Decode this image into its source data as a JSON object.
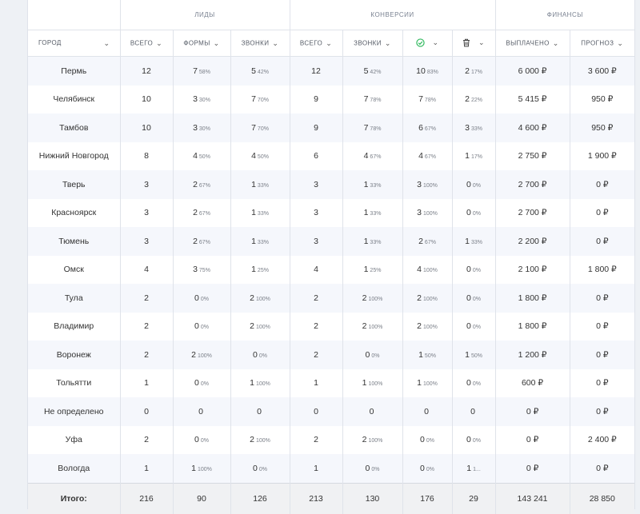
{
  "groups": {
    "leads": "ЛИДЫ",
    "conversions": "КОНВЕРСИИ",
    "finance": "ФИНАНСЫ"
  },
  "columns": {
    "city": "ГОРОД",
    "leads_total": "ВСЕГО",
    "leads_forms": "ФОРМЫ",
    "leads_calls": "ЗВОНКИ",
    "conv_total": "ВСЕГО",
    "conv_calls": "ЗВОНКИ",
    "paid": "ВЫПЛАЧЕНО",
    "forecast": "ПРОГНОЗ"
  },
  "colors": {
    "approved_icon": "#2eb85c",
    "row_alt": "#f5f7fc",
    "border": "#dfe3ea"
  },
  "rows": [
    {
      "city": "Пермь",
      "lt": "12",
      "lf": "7",
      "lfp": "58%",
      "lc": "5",
      "lcp": "42%",
      "ct": "12",
      "cc": "5",
      "ccp": "42%",
      "ca": "10",
      "cap": "83%",
      "cd": "2",
      "cdp": "17%",
      "paid": "6 000 ₽",
      "fc": "3 600 ₽"
    },
    {
      "city": "Челябинск",
      "lt": "10",
      "lf": "3",
      "lfp": "30%",
      "lc": "7",
      "lcp": "70%",
      "ct": "9",
      "cc": "7",
      "ccp": "78%",
      "ca": "7",
      "cap": "78%",
      "cd": "2",
      "cdp": "22%",
      "paid": "5 415 ₽",
      "fc": "950 ₽"
    },
    {
      "city": "Тамбов",
      "lt": "10",
      "lf": "3",
      "lfp": "30%",
      "lc": "7",
      "lcp": "70%",
      "ct": "9",
      "cc": "7",
      "ccp": "78%",
      "ca": "6",
      "cap": "67%",
      "cd": "3",
      "cdp": "33%",
      "paid": "4 600 ₽",
      "fc": "950 ₽"
    },
    {
      "city": "Нижний Новгород",
      "lt": "8",
      "lf": "4",
      "lfp": "50%",
      "lc": "4",
      "lcp": "50%",
      "ct": "6",
      "cc": "4",
      "ccp": "67%",
      "ca": "4",
      "cap": "67%",
      "cd": "1",
      "cdp": "17%",
      "paid": "2 750 ₽",
      "fc": "1 900 ₽"
    },
    {
      "city": "Тверь",
      "lt": "3",
      "lf": "2",
      "lfp": "67%",
      "lc": "1",
      "lcp": "33%",
      "ct": "3",
      "cc": "1",
      "ccp": "33%",
      "ca": "3",
      "cap": "100%",
      "cd": "0",
      "cdp": "0%",
      "paid": "2 700 ₽",
      "fc": "0 ₽"
    },
    {
      "city": "Красноярск",
      "lt": "3",
      "lf": "2",
      "lfp": "67%",
      "lc": "1",
      "lcp": "33%",
      "ct": "3",
      "cc": "1",
      "ccp": "33%",
      "ca": "3",
      "cap": "100%",
      "cd": "0",
      "cdp": "0%",
      "paid": "2 700 ₽",
      "fc": "0 ₽"
    },
    {
      "city": "Тюмень",
      "lt": "3",
      "lf": "2",
      "lfp": "67%",
      "lc": "1",
      "lcp": "33%",
      "ct": "3",
      "cc": "1",
      "ccp": "33%",
      "ca": "2",
      "cap": "67%",
      "cd": "1",
      "cdp": "33%",
      "paid": "2 200 ₽",
      "fc": "0 ₽"
    },
    {
      "city": "Омск",
      "lt": "4",
      "lf": "3",
      "lfp": "75%",
      "lc": "1",
      "lcp": "25%",
      "ct": "4",
      "cc": "1",
      "ccp": "25%",
      "ca": "4",
      "cap": "100%",
      "cd": "0",
      "cdp": "0%",
      "paid": "2 100 ₽",
      "fc": "1 800 ₽"
    },
    {
      "city": "Тула",
      "lt": "2",
      "lf": "0",
      "lfp": "0%",
      "lc": "2",
      "lcp": "100%",
      "ct": "2",
      "cc": "2",
      "ccp": "100%",
      "ca": "2",
      "cap": "100%",
      "cd": "0",
      "cdp": "0%",
      "paid": "1 800 ₽",
      "fc": "0 ₽"
    },
    {
      "city": "Владимир",
      "lt": "2",
      "lf": "0",
      "lfp": "0%",
      "lc": "2",
      "lcp": "100%",
      "ct": "2",
      "cc": "2",
      "ccp": "100%",
      "ca": "2",
      "cap": "100%",
      "cd": "0",
      "cdp": "0%",
      "paid": "1 800 ₽",
      "fc": "0 ₽"
    },
    {
      "city": "Воронеж",
      "lt": "2",
      "lf": "2",
      "lfp": "100%",
      "lc": "0",
      "lcp": "0%",
      "ct": "2",
      "cc": "0",
      "ccp": "0%",
      "ca": "1",
      "cap": "50%",
      "cd": "1",
      "cdp": "50%",
      "paid": "1 200 ₽",
      "fc": "0 ₽"
    },
    {
      "city": "Тольятти",
      "lt": "1",
      "lf": "0",
      "lfp": "0%",
      "lc": "1",
      "lcp": "100%",
      "ct": "1",
      "cc": "1",
      "ccp": "100%",
      "ca": "1",
      "cap": "100%",
      "cd": "0",
      "cdp": "0%",
      "paid": "600 ₽",
      "fc": "0 ₽"
    },
    {
      "city": "Не определено",
      "lt": "0",
      "lf": "0",
      "lfp": "",
      "lc": "0",
      "lcp": "",
      "ct": "0",
      "cc": "0",
      "ccp": "",
      "ca": "0",
      "cap": "",
      "cd": "0",
      "cdp": "",
      "paid": "0 ₽",
      "fc": "0 ₽"
    },
    {
      "city": "Уфа",
      "lt": "2",
      "lf": "0",
      "lfp": "0%",
      "lc": "2",
      "lcp": "100%",
      "ct": "2",
      "cc": "2",
      "ccp": "100%",
      "ca": "0",
      "cap": "0%",
      "cd": "0",
      "cdp": "0%",
      "paid": "0 ₽",
      "fc": "2 400 ₽"
    },
    {
      "city": "Вологда",
      "lt": "1",
      "lf": "1",
      "lfp": "100%",
      "lc": "0",
      "lcp": "0%",
      "ct": "1",
      "cc": "0",
      "ccp": "0%",
      "ca": "0",
      "cap": "0%",
      "cd": "1",
      "cdp": "1...",
      "paid": "0 ₽",
      "fc": "0 ₽"
    }
  ],
  "total": {
    "label": "Итого:",
    "lt": "216",
    "lf": "90",
    "lc": "126",
    "ct": "213",
    "cc": "130",
    "ca": "176",
    "cd": "29",
    "paid": "143 241",
    "fc": "28 850"
  }
}
